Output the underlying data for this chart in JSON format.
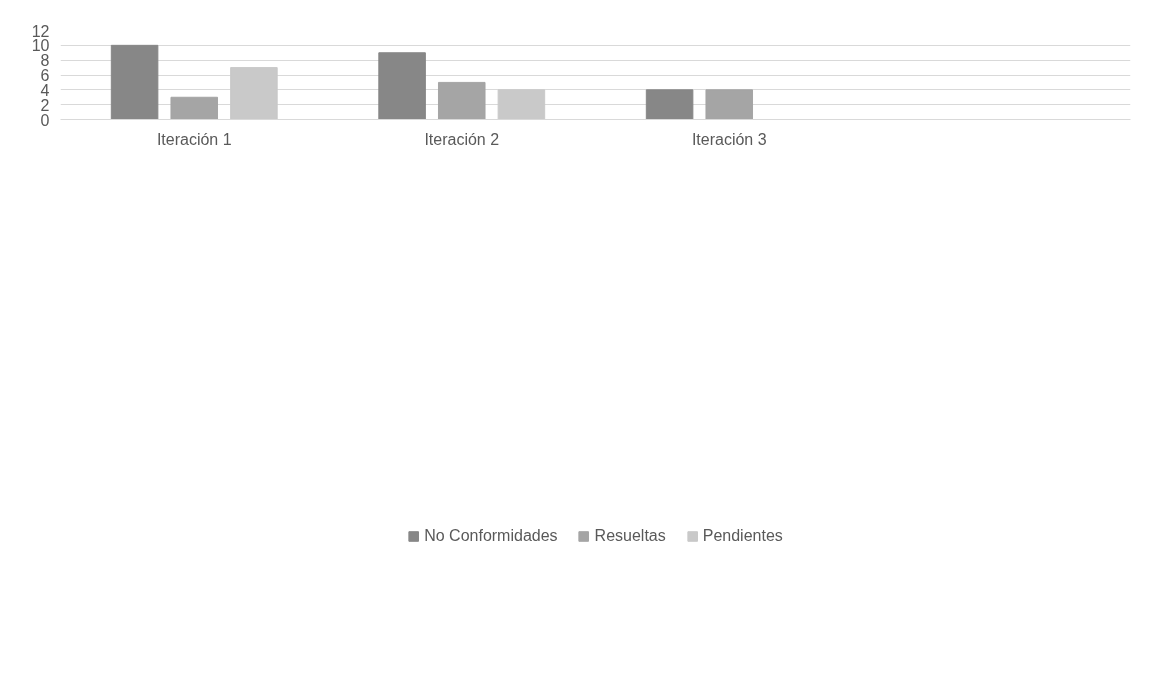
{
  "chart_data": {
    "type": "bar",
    "categories": [
      "Iteración 1",
      "Iteración 2",
      "Iteración 3",
      null
    ],
    "series": [
      {
        "name": "No Conformidades",
        "color": "#878787",
        "values": [
          10,
          9,
          4,
          null
        ]
      },
      {
        "name": "Resueltas",
        "color": "#a5a5a5",
        "values": [
          3,
          5,
          4,
          null
        ]
      },
      {
        "name": "Pendientes",
        "color": "#c9c9c9",
        "values": [
          7,
          4,
          0,
          null
        ]
      }
    ],
    "ylim": [
      0,
      12
    ],
    "yticks": [
      0,
      2,
      4,
      6,
      8,
      10,
      12
    ],
    "grid": "y",
    "legend": "bottom"
  }
}
